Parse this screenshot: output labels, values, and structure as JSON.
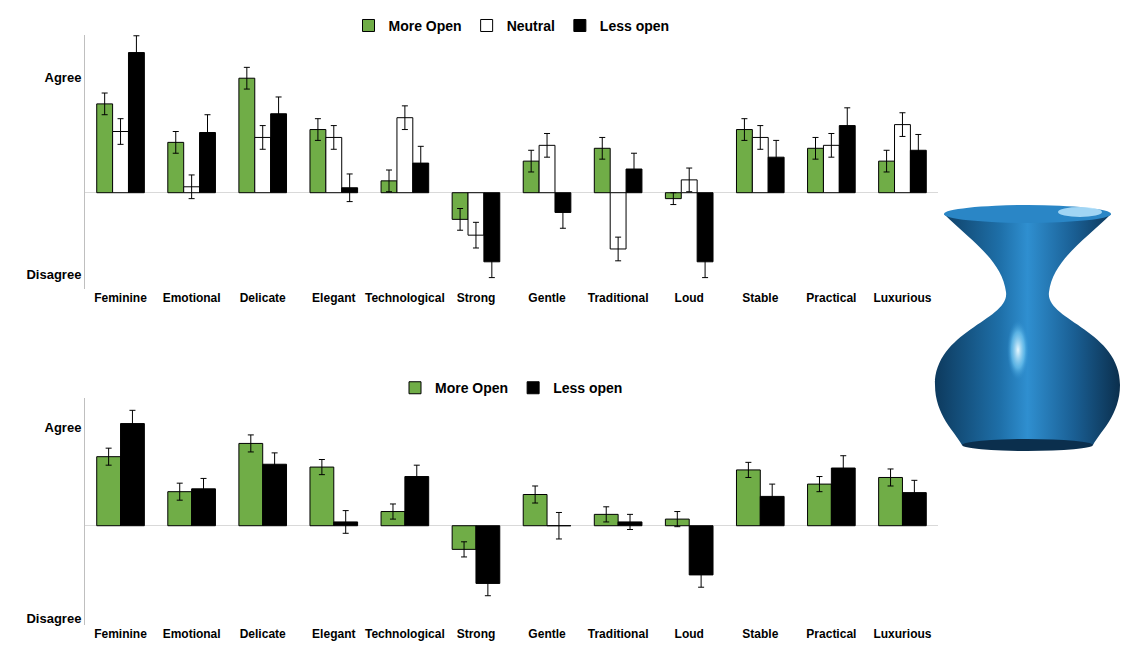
{
  "chart_data": [
    {
      "type": "bar",
      "categories": [
        "Feminine",
        "Emotional",
        "Delicate",
        "Elegant",
        "Technological",
        "Strong",
        "Gentle",
        "Traditional",
        "Loud",
        "Stable",
        "Practical",
        "Luxurious"
      ],
      "series": [
        {
          "name": "More Open",
          "color": "#70ad47",
          "values": [
            0.9,
            0.51,
            1.16,
            0.64,
            0.12,
            -0.27,
            0.32,
            0.45,
            -0.06,
            0.64,
            0.45,
            0.32
          ],
          "error": [
            0.11,
            0.11,
            0.11,
            0.11,
            0.11,
            0.11,
            0.11,
            0.11,
            0.06,
            0.11,
            0.11,
            0.11
          ]
        },
        {
          "name": "Neutral",
          "color": "#ffffff",
          "values": [
            0.62,
            0.06,
            0.56,
            0.56,
            0.76,
            -0.43,
            0.48,
            -0.57,
            0.13,
            0.56,
            0.48,
            0.69
          ],
          "error": [
            0.13,
            0.12,
            0.12,
            0.12,
            0.12,
            0.13,
            0.12,
            0.12,
            0.12,
            0.12,
            0.12,
            0.12
          ]
        },
        {
          "name": "Less open",
          "color": "#000000",
          "values": [
            1.42,
            0.61,
            0.8,
            0.05,
            0.3,
            -0.7,
            -0.2,
            0.24,
            -0.7,
            0.36,
            0.68,
            0.43
          ],
          "error": [
            0.17,
            0.18,
            0.17,
            0.14,
            0.17,
            0.16,
            0.16,
            0.16,
            0.16,
            0.17,
            0.18,
            0.16
          ]
        }
      ],
      "ylim": [
        -0.98,
        1.6
      ],
      "yticks": [
        {
          "value": -0.83,
          "label": "Disagree"
        },
        {
          "value": 1.17,
          "label": "Agree"
        }
      ],
      "grid": false,
      "legend": "top"
    },
    {
      "type": "bar",
      "categories": [
        "Feminine",
        "Emotional",
        "Delicate",
        "Elegant",
        "Technological",
        "Strong",
        "Gentle",
        "Traditional",
        "Loud",
        "Stable",
        "Practical",
        "Luxurious"
      ],
      "series": [
        {
          "name": "More Open",
          "color": "#70ad47",
          "values": [
            0.73,
            0.36,
            0.87,
            0.62,
            0.15,
            -0.25,
            0.33,
            0.12,
            0.07,
            0.59,
            0.44,
            0.51
          ],
          "error": [
            0.09,
            0.09,
            0.09,
            0.08,
            0.08,
            0.08,
            0.09,
            0.08,
            0.08,
            0.08,
            0.08,
            0.09
          ]
        },
        {
          "name": "Less open",
          "color": "#000000",
          "values": [
            1.08,
            0.39,
            0.65,
            0.04,
            0.52,
            -0.61,
            0.0,
            0.04,
            -0.52,
            0.31,
            0.61,
            0.35
          ],
          "error": [
            0.14,
            0.11,
            0.12,
            0.12,
            0.12,
            0.13,
            0.14,
            0.08,
            0.13,
            0.13,
            0.13,
            0.13
          ]
        }
      ],
      "ylim": [
        -1.05,
        1.35
      ],
      "yticks": [
        {
          "value": -0.98,
          "label": "Disagree"
        },
        {
          "value": 1.04,
          "label": "Agree"
        }
      ],
      "grid": false,
      "legend": "top"
    }
  ]
}
